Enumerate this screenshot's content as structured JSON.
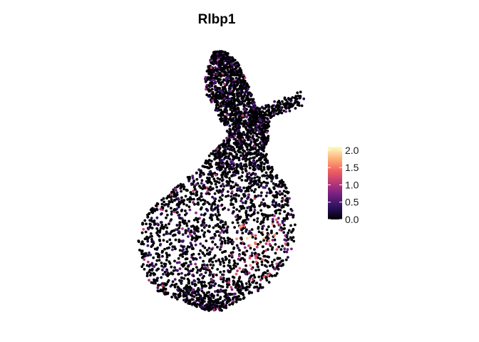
{
  "chart_data": {
    "type": "scatter",
    "title": "Rlbp1",
    "xlabel": "",
    "ylabel": "",
    "grid": false,
    "axes_visible": false,
    "legend": {
      "type": "colorbar",
      "placement": "right",
      "range": [
        0,
        2.1
      ],
      "ticks": [
        {
          "value": 0.0,
          "label": "0.0"
        },
        {
          "value": 0.5,
          "label": "0.5"
        },
        {
          "value": 1.0,
          "label": "1.0"
        },
        {
          "value": 1.5,
          "label": "1.5"
        },
        {
          "value": 2.0,
          "label": "2.0"
        }
      ],
      "colors": [
        "#000004",
        "#2c115f",
        "#721f81",
        "#b73779",
        "#f1605d",
        "#feb078",
        "#fcfdbf"
      ]
    },
    "point_color_low": "#000004",
    "point_color_high": "#fcfdbf"
  }
}
